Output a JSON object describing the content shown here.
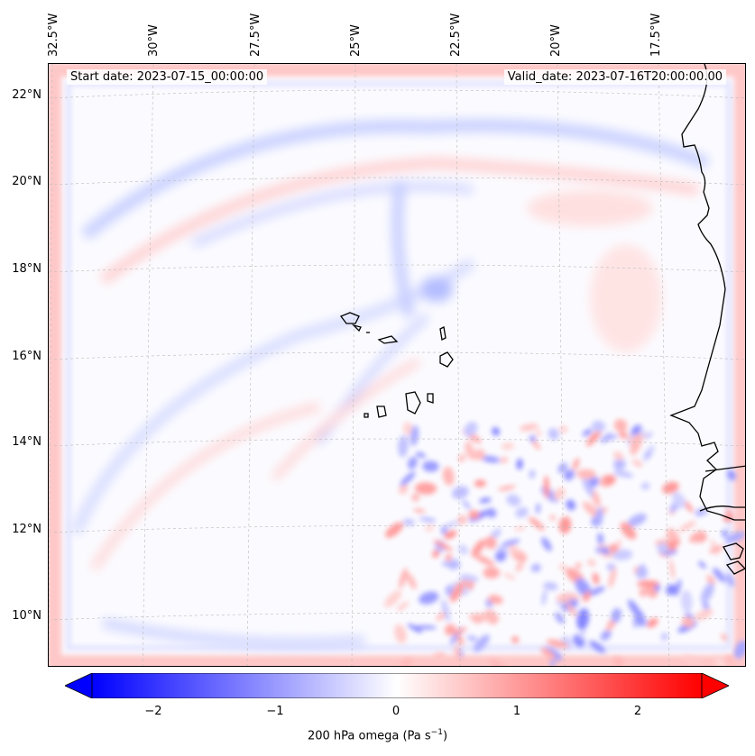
{
  "header": {
    "start_date": "Start date: 2023-07-15_00:00:00",
    "valid_date": "Valid_date: 2023-07-16T20:00:00.00"
  },
  "axes": {
    "lon_labels": [
      "32.5°W",
      "30°W",
      "27.5°W",
      "25°W",
      "22.5°W",
      "20°W",
      "17.5°W"
    ],
    "lat_labels": [
      "22°N",
      "20°N",
      "18°N",
      "16°N",
      "14°N",
      "12°N",
      "10°N"
    ]
  },
  "colorbar": {
    "ticks": [
      "−2",
      "−1",
      "0",
      "1",
      "2"
    ],
    "label_prefix": "200 hPa omega (Pa s",
    "label_exp": "−1",
    "label_suffix": ")",
    "colors": {
      "neg": "#0000ff",
      "zero": "#ffffff",
      "pos": "#ff0000"
    },
    "range": [
      -2.5,
      2.5
    ]
  },
  "map": {
    "coastline_color": "#000000",
    "gridline_color": "#bbbbbb"
  }
}
